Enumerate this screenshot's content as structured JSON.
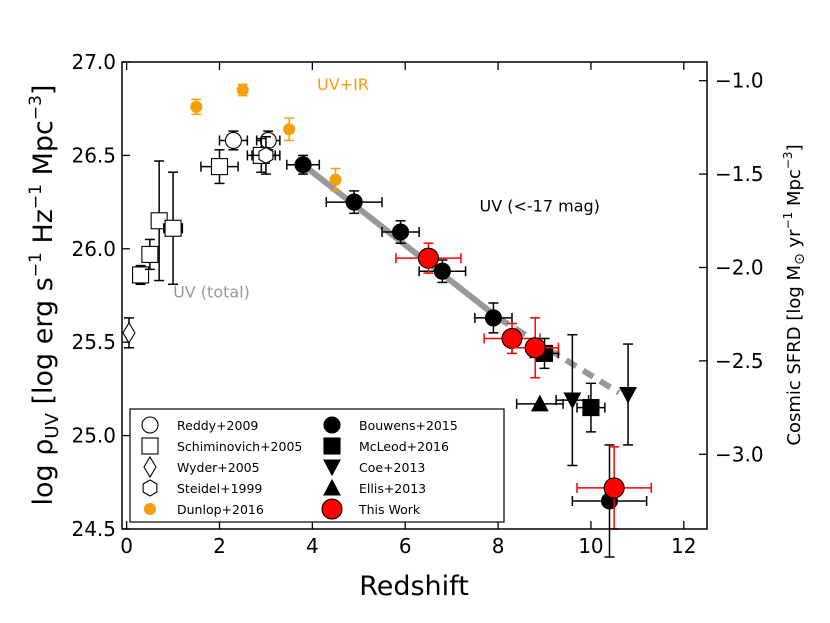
{
  "chart_data": {
    "type": "scatter",
    "xlabel": "Redshift",
    "ylabel_prefix": "log ρ",
    "ylabel_sub": "UV",
    "ylabel_rest": " [log erg s",
    "ylabel_sup1": "−1",
    "ylabel_mid": " Hz",
    "ylabel_sup2": "−1",
    "ylabel_mpc": " Mpc",
    "ylabel_sup3": "−3",
    "ylabel_end": "]",
    "y2label_a": "Cosmic SFRD [log M",
    "y2label_sun": "⊙",
    "y2label_b": " yr",
    "y2label_sup1": "−1",
    "y2label_c": " Mpc",
    "y2label_sup2": "−3",
    "y2label_d": "]",
    "xlim": [
      -0.1,
      12.5
    ],
    "ylim": [
      24.5,
      27.0
    ],
    "y2lim": [
      -3.4,
      -0.9
    ],
    "xticks": [
      0,
      2,
      4,
      6,
      8,
      10,
      12
    ],
    "xtick_labels": [
      "0",
      "2",
      "4",
      "6",
      "8",
      "10",
      "12"
    ],
    "yticks": [
      24.5,
      25.0,
      25.5,
      26.0,
      26.5,
      27.0
    ],
    "ytick_labels": [
      "24.5",
      "25.0",
      "25.5",
      "26.0",
      "26.5",
      "27.0"
    ],
    "y2ticks": [
      -3.0,
      -2.5,
      -2.0,
      -1.5,
      -1.0
    ],
    "y2tick_labels": [
      "−3.0",
      "−2.5",
      "−2.0",
      "−1.5",
      "−1.0"
    ],
    "annotations": [
      {
        "text": "UV+IR",
        "x": 4.1,
        "y": 26.85,
        "color": "#f5a00a"
      },
      {
        "text": "UV (<-17 mag)",
        "x": 7.6,
        "y": 26.2,
        "color": "#000000"
      },
      {
        "text": "UV (total)",
        "x": 1.0,
        "y": 25.74,
        "color": "#999999"
      }
    ],
    "fit_lines": [
      {
        "name": "UV (<-17 mag) fit",
        "x": [
          3.8,
          8.0
        ],
        "y": [
          26.45,
          25.63
        ],
        "style": "solid",
        "color": "#999999"
      },
      {
        "name": "UV (<-17 mag) extrapolation",
        "x": [
          8.0,
          10.6
        ],
        "y": [
          25.63,
          25.23
        ],
        "style": "dashed",
        "color": "#999999"
      }
    ],
    "series": [
      {
        "name": "Reddy+2009",
        "marker": "circle",
        "filled": false,
        "color": "#000000",
        "points": [
          {
            "x": 2.3,
            "y": 26.58,
            "xerr": 0.3,
            "yerr": 0.05
          },
          {
            "x": 3.05,
            "y": 26.58,
            "xerr": 0.25,
            "yerr": 0.05
          }
        ]
      },
      {
        "name": "Schiminovich+2005",
        "marker": "square",
        "filled": false,
        "color": "#000000",
        "points": [
          {
            "x": 0.3,
            "y": 25.86,
            "xerr": 0.1,
            "yerr": 0.05
          },
          {
            "x": 0.5,
            "y": 25.97,
            "xerr": 0.1,
            "yerr": 0.08
          },
          {
            "x": 0.7,
            "y": 26.15,
            "xerr": 0.1,
            "yerr": 0.32
          },
          {
            "x": 1.0,
            "y": 26.11,
            "xerr": 0.2,
            "yerr": 0.3
          },
          {
            "x": 2.0,
            "y": 26.44,
            "xerr": 0.4,
            "yerr": 0.09
          },
          {
            "x": 2.9,
            "y": 26.5,
            "xerr": 0.3,
            "yerr": 0.09
          }
        ]
      },
      {
        "name": "Wyder+2005",
        "marker": "diamond",
        "filled": false,
        "color": "#000000",
        "points": [
          {
            "x": 0.05,
            "y": 25.55,
            "xerr": 0,
            "yerr": 0.08
          }
        ]
      },
      {
        "name": "Steidel+1999",
        "marker": "hexagon",
        "filled": false,
        "color": "#000000",
        "points": [
          {
            "x": 3.0,
            "y": 26.5,
            "xerr": 0.3,
            "yerr": 0.1
          }
        ]
      },
      {
        "name": "Dunlop+2016",
        "marker": "circle-small",
        "filled": true,
        "color": "#f5a00a",
        "points": [
          {
            "x": 1.5,
            "y": 26.76,
            "xerr": 0,
            "yerr": 0.04
          },
          {
            "x": 2.5,
            "y": 26.85,
            "xerr": 0,
            "yerr": 0.03
          },
          {
            "x": 3.5,
            "y": 26.64,
            "xerr": 0,
            "yerr": 0.06
          },
          {
            "x": 4.5,
            "y": 26.37,
            "xerr": 0,
            "yerr": 0.06
          }
        ]
      },
      {
        "name": "Bouwens+2015",
        "marker": "circle",
        "filled": true,
        "color": "#000000",
        "points": [
          {
            "x": 3.8,
            "y": 26.45,
            "xerr": 0.35,
            "yerr": 0.05
          },
          {
            "x": 4.9,
            "y": 26.25,
            "xerr": 0.6,
            "yerr": 0.06
          },
          {
            "x": 5.9,
            "y": 26.09,
            "xerr": 0.4,
            "yerr": 0.06
          },
          {
            "x": 6.8,
            "y": 25.88,
            "xerr": 0.5,
            "yerr": 0.06
          },
          {
            "x": 7.9,
            "y": 25.63,
            "xerr": 0.4,
            "yerr": 0.08
          },
          {
            "x": 10.4,
            "y": 24.65,
            "xerr": 0.8,
            "yerr": 0.3
          }
        ]
      },
      {
        "name": "McLeod+2016",
        "marker": "square",
        "filled": true,
        "color": "#000000",
        "points": [
          {
            "x": 9.0,
            "y": 25.44,
            "xerr": 0.3,
            "yerr": 0.08
          },
          {
            "x": 10.0,
            "y": 25.15,
            "xerr": 0.3,
            "yerr": 0.13
          }
        ]
      },
      {
        "name": "Coe+2013",
        "marker": "triangle-down",
        "filled": true,
        "color": "#000000",
        "points": [
          {
            "x": 9.6,
            "y": 25.19,
            "xerr": 0.35,
            "yerr": 0.35
          },
          {
            "x": 10.8,
            "y": 25.22,
            "xerr": 0,
            "yerr": 0.27
          }
        ]
      },
      {
        "name": "Ellis+2013",
        "marker": "triangle-up",
        "filled": true,
        "color": "#000000",
        "points": [
          {
            "x": 8.9,
            "y": 25.17,
            "xerr": 0.5,
            "yerr": 0
          }
        ]
      },
      {
        "name": "This Work",
        "marker": "circle-large",
        "filled": true,
        "color": "#ff0000",
        "points": [
          {
            "x": 6.5,
            "y": 25.95,
            "xerr": 0.7,
            "yerr": 0.08
          },
          {
            "x": 8.3,
            "y": 25.52,
            "xerr": 0.6,
            "yerr": 0.08
          },
          {
            "x": 8.8,
            "y": 25.47,
            "xerr": 0.5,
            "yerr": 0.16
          },
          {
            "x": 10.5,
            "y": 24.72,
            "xerr": 0.8,
            "yerr": 0.22
          }
        ]
      }
    ],
    "legend": {
      "placement": "lower-left",
      "columns": [
        [
          "Reddy+2009",
          "Schiminovich+2005",
          "Wyder+2005",
          "Steidel+1999",
          "Dunlop+2016"
        ],
        [
          "Bouwens+2015",
          "McLeod+2016",
          "Coe+2013",
          "Ellis+2013",
          "This Work"
        ]
      ]
    }
  }
}
